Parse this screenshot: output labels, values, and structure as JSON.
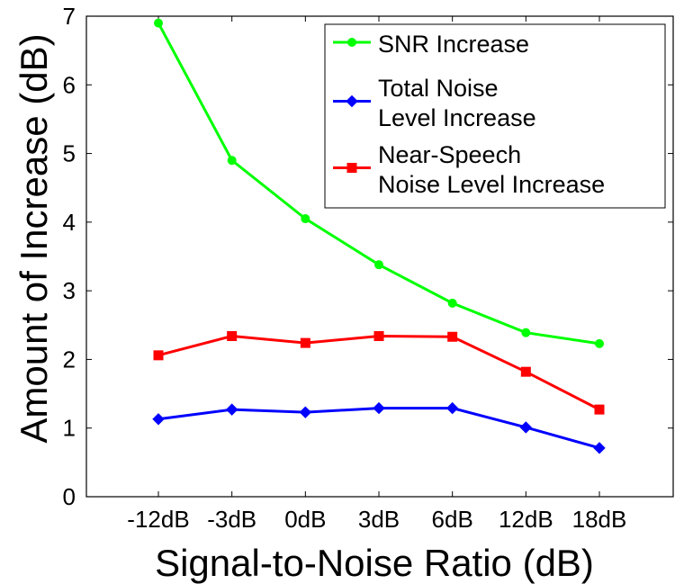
{
  "chart_data": {
    "type": "line",
    "title": "",
    "xlabel": "Signal-to-Noise Ratio (dB)",
    "ylabel": "Amount of Increase (dB)",
    "categories": [
      "-12dB",
      "-3dB",
      "0dB",
      "3dB",
      "6dB",
      "12dB",
      "18dB"
    ],
    "ylim": [
      0,
      7
    ],
    "yticks": [
      0,
      1,
      2,
      3,
      4,
      5,
      6,
      7
    ],
    "grid": false,
    "legend_position": "top-right",
    "series": [
      {
        "name": "SNR Increase",
        "color": "#00ff00",
        "marker": "circle",
        "values": [
          6.9,
          4.9,
          4.05,
          3.38,
          2.82,
          2.39,
          2.23
        ]
      },
      {
        "name": "Total Noise Level Increase",
        "legend_lines": [
          "Total Noise",
          "Level Increase"
        ],
        "color": "#0000ff",
        "marker": "diamond",
        "values": [
          1.13,
          1.27,
          1.23,
          1.29,
          1.29,
          1.01,
          0.71
        ]
      },
      {
        "name": "Near-Speech Noise Level Increase",
        "legend_lines": [
          "Near-Speech",
          "Noise Level Increase"
        ],
        "color": "#ff0000",
        "marker": "square",
        "values": [
          2.06,
          2.34,
          2.24,
          2.34,
          2.33,
          1.82,
          1.27
        ]
      }
    ]
  }
}
